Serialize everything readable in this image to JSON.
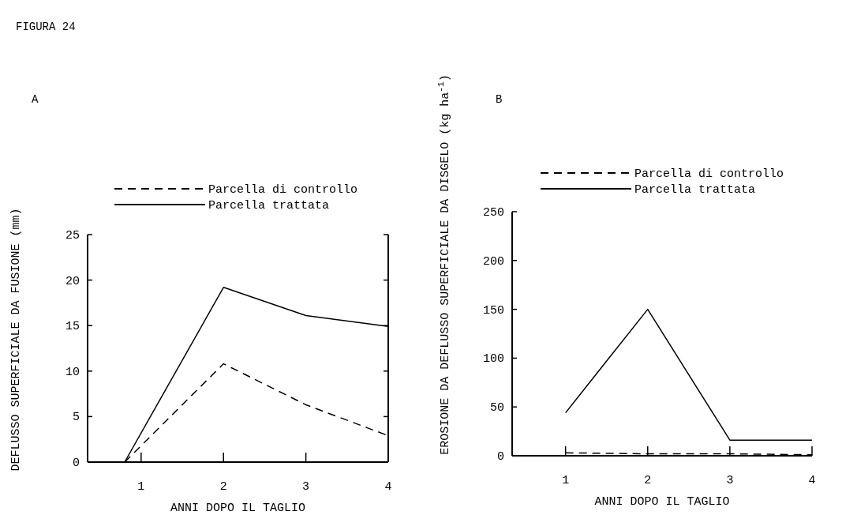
{
  "chart_data": [
    {
      "type": "line",
      "title": "A",
      "xlabel": "ANNI DOPO IL TAGLIO",
      "ylabel": "DEFLUSSO SUPERFICIALE DA FUSIONE (mm)",
      "annotations": [
        "FIGURA 24"
      ],
      "xlim": [
        0.35,
        4
      ],
      "xticks": [
        1,
        2,
        3,
        4
      ],
      "ylim": [
        0,
        25
      ],
      "yticks": [
        0,
        5,
        10,
        15,
        20,
        25
      ],
      "legend": "top",
      "grid": false,
      "marker": "none",
      "series": [
        {
          "name": "Parcella di controllo",
          "color": "#000000",
          "line_style": "dashed",
          "x": [
            0.8,
            2,
            3,
            4
          ],
          "values": [
            0,
            10.8,
            6.3,
            2.9
          ]
        },
        {
          "name": "Parcella trattata",
          "color": "#000000",
          "line_style": "solid",
          "x": [
            0.8,
            2,
            3,
            4
          ],
          "values": [
            0,
            19.2,
            16.1,
            14.9
          ]
        }
      ]
    },
    {
      "type": "line",
      "title": "B",
      "xlabel": "ANNI DOPO IL TAGLIO",
      "ylabel": "EROSIONE DA DEFLUSSO SUPERFICIALE DA DISGELO  (kg ha$^{-1}$)",
      "xlim": [
        0.35,
        4
      ],
      "xticks": [
        1,
        2,
        3,
        4
      ],
      "ylim": [
        0,
        250
      ],
      "yticks": [
        0,
        50,
        100,
        150,
        200,
        250
      ],
      "legend": "top right",
      "grid": false,
      "marker": "none",
      "series": [
        {
          "name": "Parcella di controllo",
          "color": "#000000",
          "line_style": "dashed",
          "x": [
            1,
            2,
            3,
            4
          ],
          "values": [
            3,
            2,
            2,
            1
          ]
        },
        {
          "name": "Parcella trattata",
          "color": "#000000",
          "line_style": "solid",
          "x": [
            1,
            2,
            3,
            4
          ],
          "values": [
            44,
            150,
            16,
            16
          ]
        }
      ]
    }
  ]
}
